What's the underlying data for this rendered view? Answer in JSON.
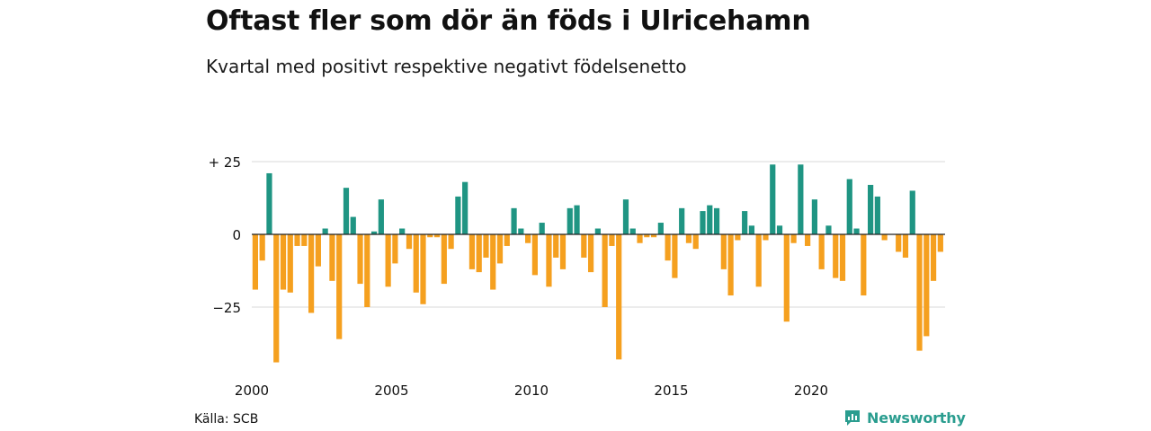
{
  "title": "Oftast fler som dör än föds i Ulricehamn",
  "subtitle": "Kvartal med positivt respektive negativt födelsenetto",
  "source": "Källa: SCB",
  "brand": "Newsworthy",
  "colors": {
    "positive": "#1f9583",
    "negative": "#f5a01f",
    "grid": "#d9d9d9",
    "zero": "#222222",
    "brand": "#2a9d8f"
  },
  "chart_data": {
    "type": "bar",
    "x_start": "2000 Q1",
    "x_ticks": [
      {
        "label": "2000",
        "pos": 0
      },
      {
        "label": "2005",
        "pos": 20
      },
      {
        "label": "2010",
        "pos": 40
      },
      {
        "label": "2015",
        "pos": 60
      },
      {
        "label": "2020",
        "pos": 80
      }
    ],
    "y_ticks": [
      {
        "label": "+ 25",
        "value": 25
      },
      {
        "label": "0",
        "value": 0
      },
      {
        "label": "−25",
        "value": -25
      }
    ],
    "ylim": [
      -45,
      25
    ],
    "values": [
      -19,
      -9,
      21,
      -44,
      -19,
      -20,
      -4,
      -4,
      -27,
      -11,
      2,
      -16,
      -36,
      16,
      6,
      -17,
      -25,
      1,
      12,
      -18,
      -10,
      2,
      -5,
      -20,
      -24,
      -1,
      -1,
      -17,
      -5,
      13,
      18,
      -12,
      -13,
      -8,
      -19,
      -10,
      -4,
      9,
      2,
      -3,
      -14,
      4,
      -18,
      -8,
      -12,
      9,
      10,
      -8,
      -13,
      2,
      -25,
      -4,
      -43,
      12,
      2,
      -3,
      -1,
      -1,
      4,
      -9,
      -15,
      9,
      -3,
      -5,
      8,
      10,
      9,
      -12,
      -21,
      -2,
      8,
      3,
      -18,
      -2,
      24,
      3,
      -30,
      -3,
      24,
      -4,
      12,
      -12,
      3,
      -15,
      -16,
      19,
      2,
      -21,
      17,
      13,
      -2,
      0,
      -6,
      -8,
      15,
      -40,
      -35,
      -16,
      -6
    ]
  }
}
